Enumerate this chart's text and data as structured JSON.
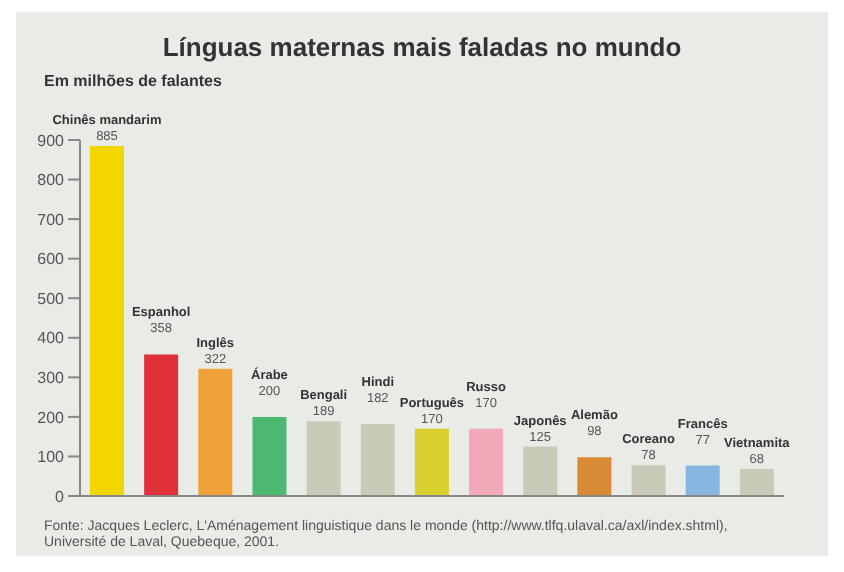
{
  "chart_data": {
    "type": "bar",
    "title": "Línguas maternas mais faladas no mundo",
    "ylabel": "Em milhões de falantes",
    "categories": [
      "Chinês mandarim",
      "Espanhol",
      "Inglês",
      "Árabe",
      "Bengali",
      "Hindi",
      "Português",
      "Russo",
      "Japonês",
      "Alemão",
      "Coreano",
      "Francês",
      "Vietnamita"
    ],
    "values": [
      885,
      358,
      322,
      200,
      189,
      182,
      170,
      170,
      125,
      98,
      78,
      77,
      68
    ],
    "colors": [
      "#f2d600",
      "#e0303a",
      "#f0a23a",
      "#4cb872",
      "#c9cbb8",
      "#c9cbb8",
      "#d8cf2e",
      "#f2aab8",
      "#c9cbb8",
      "#d98a34",
      "#c9cbb8",
      "#88b6e2",
      "#c9cbb8"
    ],
    "ylim": [
      0,
      900
    ],
    "yticks": [
      0,
      100,
      200,
      300,
      400,
      500,
      600,
      700,
      800,
      900
    ],
    "grid": false,
    "legend": false,
    "tick_labels": "y",
    "data_labels": true,
    "annotations": [
      "Fonte: Jacques Leclerc, L'Aménagement linguistique dans le monde (http://www.tlfq.ulaval.ca/axl/index.shtml),",
      "Université de Laval, Quebeque, 2001."
    ]
  }
}
